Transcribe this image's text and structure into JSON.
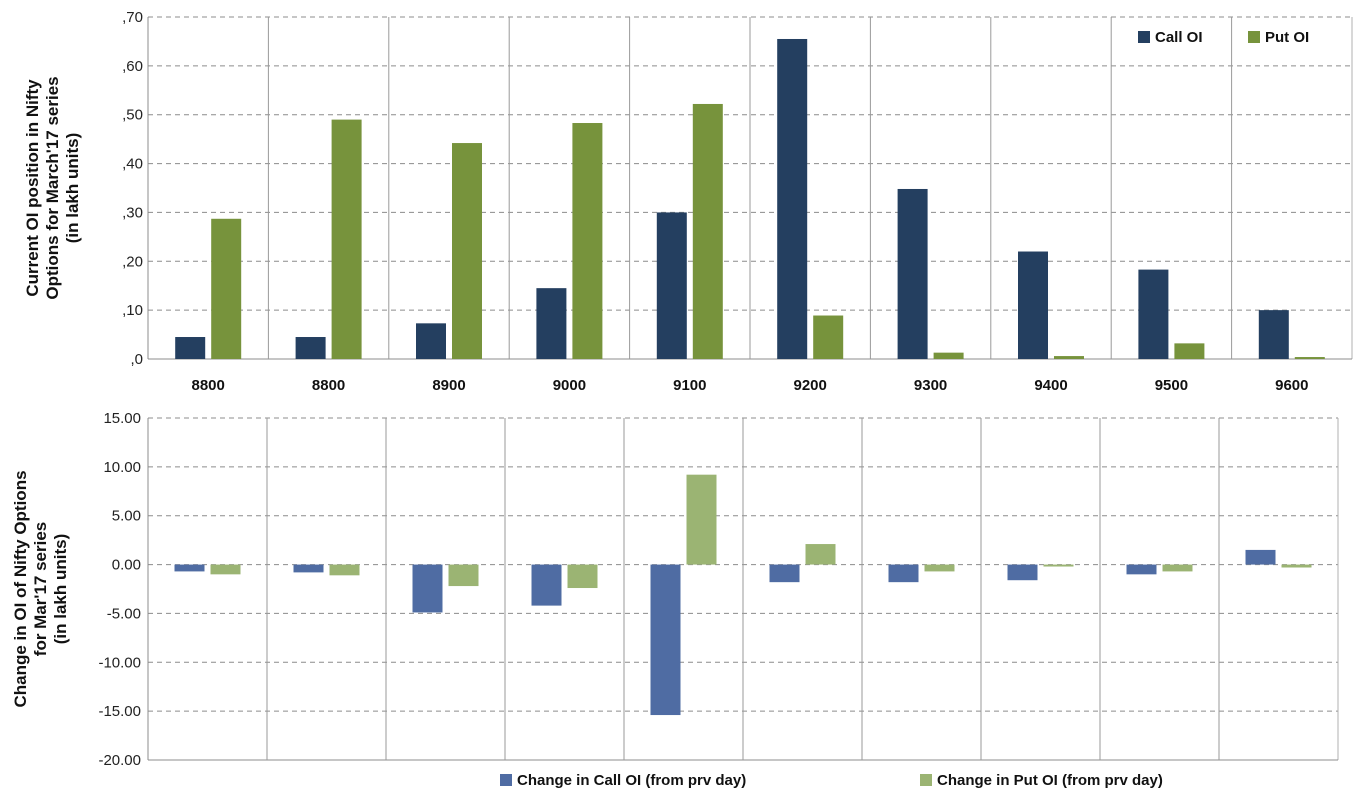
{
  "chart_data": [
    {
      "type": "bar",
      "categories": [
        "8800",
        "8800",
        "8900",
        "9000",
        "9100",
        "9200",
        "9300",
        "9400",
        "9500",
        "9600"
      ],
      "series": [
        {
          "name": "Call OI",
          "color": "#243F60",
          "values": [
            4.5,
            4.5,
            7.3,
            14.5,
            30.0,
            65.5,
            34.8,
            22.0,
            18.3,
            10.0
          ]
        },
        {
          "name": "Put OI",
          "color": "#77933C",
          "values": [
            28.7,
            49.0,
            44.2,
            48.3,
            52.2,
            8.9,
            1.3,
            0.6,
            3.2,
            0.4
          ]
        }
      ],
      "yticks": [
        ",0",
        ",10",
        ",20",
        ",30",
        ",40",
        ",50",
        ",60",
        ",70"
      ],
      "ylim": [
        0,
        70
      ],
      "ylabel_lines": [
        "Current OI position in Nifty",
        "Options for March'17 series",
        "(in lakh units)"
      ],
      "legend_position": "top-right",
      "grid": true
    },
    {
      "type": "bar",
      "categories": [
        "8800",
        "8800",
        "8900",
        "9000",
        "9100",
        "9200",
        "9300",
        "9400",
        "9500",
        "9600"
      ],
      "series": [
        {
          "name": "Change in Call OI (from prv day)",
          "color": "#4F6CA3",
          "values": [
            -0.7,
            -0.8,
            -4.9,
            -4.2,
            -15.4,
            -1.8,
            -1.8,
            -1.6,
            -1.0,
            1.5
          ]
        },
        {
          "name": "Change in Put OI (from prv day)",
          "color": "#9BB473",
          "values": [
            -1.0,
            -1.1,
            -2.2,
            -2.4,
            9.2,
            2.1,
            -0.7,
            -0.2,
            -0.7,
            -0.3
          ]
        }
      ],
      "yticks": [
        "15.00",
        "10.00",
        "5.00",
        "0.00",
        "-5.00",
        "-10.00",
        "-15.00",
        "-20.00"
      ],
      "ylim": [
        -20,
        15
      ],
      "ylabel_lines": [
        "Change in OI of Nifty Options",
        "for Mar'17 series",
        "(in lakh units)"
      ],
      "legend_position": "bottom",
      "grid": true
    }
  ]
}
